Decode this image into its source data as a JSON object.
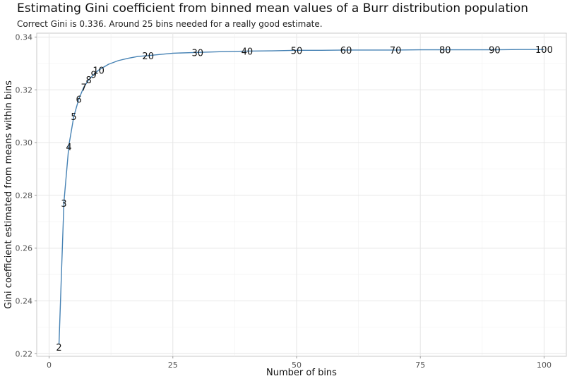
{
  "chart_data": {
    "type": "line",
    "title": "Estimating Gini coefficient from binned mean values of a Burr distribution population",
    "subtitle": "Correct Gini is 0.336. Around 25 bins needed for a really good estimate.",
    "xlabel": "Number of bins",
    "ylabel": "Gini coefficient estimated from means within bins",
    "xlim": [
      -2.5,
      104.5
    ],
    "ylim": [
      0.219,
      0.3415
    ],
    "xticks": [
      0,
      25,
      50,
      75,
      100
    ],
    "yticks": [
      0.22,
      0.24,
      0.26,
      0.28,
      0.3,
      0.32,
      0.34
    ],
    "ytick_labels": [
      "0.22",
      "0.24",
      "0.26",
      "0.28",
      "0.30",
      "0.32",
      "0.34"
    ],
    "grid": true,
    "line_color": "#4682b4",
    "series": [
      {
        "x": [
          2,
          3,
          4,
          5,
          6,
          7,
          8,
          9,
          10,
          12,
          14,
          16,
          18,
          20,
          25,
          30,
          35,
          40,
          45,
          50,
          55,
          60,
          65,
          70,
          75,
          80,
          85,
          90,
          95,
          100
        ],
        "y": [
          0.2235,
          0.2775,
          0.299,
          0.31,
          0.3165,
          0.321,
          0.3238,
          0.3258,
          0.3275,
          0.3297,
          0.3311,
          0.332,
          0.3327,
          0.333,
          0.3339,
          0.3342,
          0.3345,
          0.3347,
          0.3348,
          0.335,
          0.335,
          0.3351,
          0.3351,
          0.3351,
          0.3352,
          0.3352,
          0.3352,
          0.3352,
          0.3353,
          0.3353
        ]
      }
    ],
    "point_labels": [
      {
        "text": "2",
        "x": 2,
        "y": 0.2225
      },
      {
        "text": "3",
        "x": 3,
        "y": 0.277
      },
      {
        "text": "4",
        "x": 4,
        "y": 0.2985
      },
      {
        "text": "5",
        "x": 5,
        "y": 0.31
      },
      {
        "text": "6",
        "x": 6,
        "y": 0.3165
      },
      {
        "text": "7",
        "x": 7,
        "y": 0.321
      },
      {
        "text": "8",
        "x": 8,
        "y": 0.3238
      },
      {
        "text": "9",
        "x": 9,
        "y": 0.3258
      },
      {
        "text": "10",
        "x": 10,
        "y": 0.3275
      },
      {
        "text": "20",
        "x": 20,
        "y": 0.333
      },
      {
        "text": "30",
        "x": 30,
        "y": 0.3342
      },
      {
        "text": "40",
        "x": 40,
        "y": 0.3347
      },
      {
        "text": "50",
        "x": 50,
        "y": 0.335
      },
      {
        "text": "60",
        "x": 60,
        "y": 0.3351
      },
      {
        "text": "70",
        "x": 70,
        "y": 0.3351
      },
      {
        "text": "80",
        "x": 80,
        "y": 0.3352
      },
      {
        "text": "90",
        "x": 90,
        "y": 0.3352
      },
      {
        "text": "100",
        "x": 100,
        "y": 0.3353
      }
    ]
  }
}
